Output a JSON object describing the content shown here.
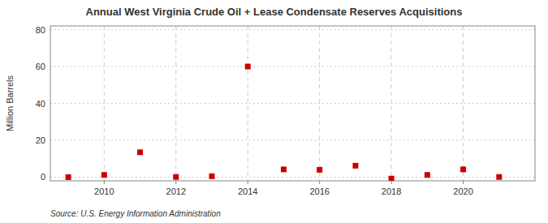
{
  "chart_data": {
    "type": "scatter",
    "title": "Annual West Virginia Crude Oil + Lease Condensate Reserves Acquisitions",
    "y_label": "Million Barrels",
    "annotations": [
      "Source: U.S. Energy Information Administration"
    ],
    "x": [
      2009,
      2010,
      2011,
      2012,
      2013,
      2014,
      2015,
      2016,
      2017,
      2018,
      2019,
      2020,
      2021
    ],
    "values": [
      0.0,
      1.2,
      13.5,
      0.1,
      0.5,
      60.0,
      4.2,
      4.0,
      6.2,
      -0.8,
      1.2,
      4.2,
      0.1
    ],
    "color": "#cc0000",
    "marker": "square",
    "xlim": [
      2008.5,
      2022.0
    ],
    "ylim": [
      -2,
      82
    ],
    "xticks": [
      2010,
      2012,
      2014,
      2016,
      2018,
      2020
    ],
    "yticks": [
      0,
      20,
      40,
      60,
      80
    ],
    "grid": true
  }
}
